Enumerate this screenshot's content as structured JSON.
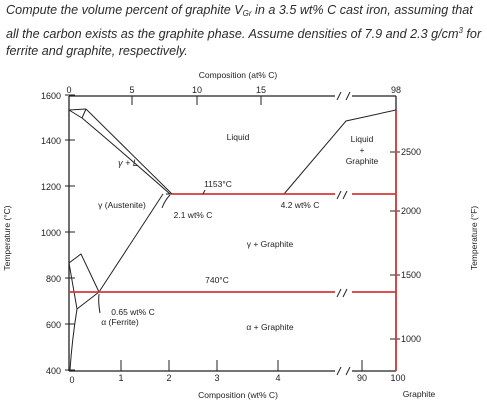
{
  "question": {
    "part1": "Compute the volume percent of graphite V",
    "sub": "Gr",
    "part2": " in a 3.5 wt% C cast iron, assuming that all the carbon exists as the graphite phase. Assume densities of 7.9 and 2.3 g/cm",
    "sup": "3",
    "part3": " for ferrite and graphite, respectively."
  },
  "diagram": {
    "top_axis_title": "Composition (at% C)",
    "top_ticks": [
      "0",
      "5",
      "10",
      "15",
      "98"
    ],
    "bottom_axis_title": "Composition (wt% C)",
    "bottom_ticks": [
      "0",
      "1",
      "2",
      "3",
      "4",
      "90",
      "100"
    ],
    "bottom_end_label": "Graphite",
    "left_axis_title": "Temperature (°C)",
    "left_ticks": [
      "1600",
      "1400",
      "1200",
      "1000",
      "800",
      "600",
      "400"
    ],
    "right_axis_title": "Temperature (°F)",
    "right_ticks": [
      "2500",
      "2000",
      "1500",
      "1000"
    ],
    "regions": {
      "liquid": "Liquid",
      "liquid_graphite_1": "Liquid",
      "liquid_graphite_2": "+",
      "liquid_graphite_3": "Graphite",
      "gamma_l": "γ + L",
      "austenite": "γ (Austenite)",
      "gamma_graphite": "γ + Graphite",
      "ferrite": "α (Ferrite)",
      "alpha_graphite": "α + Graphite"
    },
    "annotations": {
      "eutectic_temp": "1153°C",
      "eutectic_comp": "4.2 wt% C",
      "max_solubility": "2.1 wt% C",
      "eutectoid_temp": "740°C",
      "ferrite_solubility": "0.65 wt% C"
    }
  }
}
